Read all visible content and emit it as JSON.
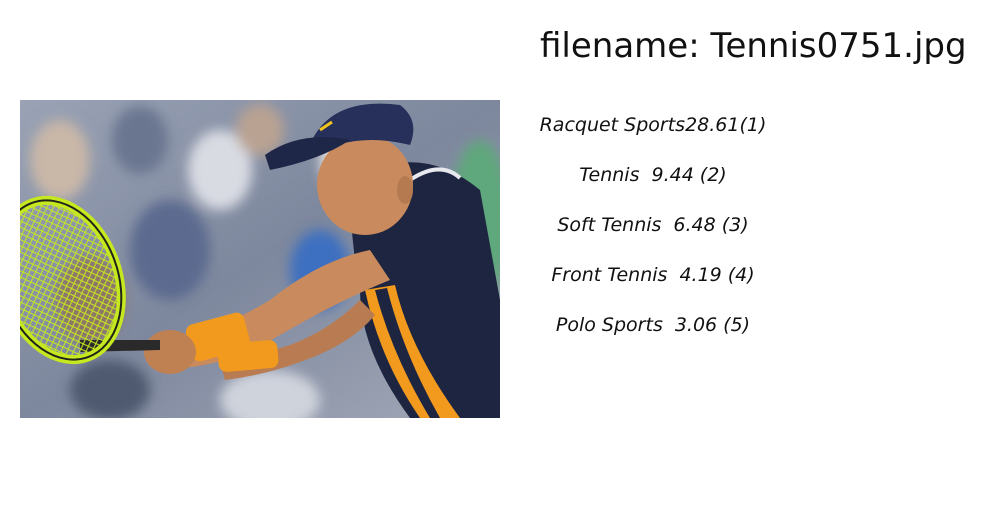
{
  "header": {
    "filename_label": "filename: Tennis0751.jpg"
  },
  "image": {
    "subject": "tennis player hitting backhand",
    "colors": {
      "crowd": "#8a93a8",
      "shirt": "#1e2540",
      "wristband": "#f29a1e",
      "racquet": "#c6e81f",
      "skin": "#c98a5e"
    }
  },
  "predictions": [
    {
      "label": "Racquet Sports",
      "score": "28.61",
      "rank": "(1)"
    },
    {
      "label": "Tennis",
      "score": "9.44",
      "rank": "(2)"
    },
    {
      "label": "Soft Tennis",
      "score": "6.48",
      "rank": "(3)"
    },
    {
      "label": "Front Tennis",
      "score": "4.19",
      "rank": "(4)"
    },
    {
      "label": "Polo Sports",
      "score": "3.06",
      "rank": "(5)"
    }
  ]
}
